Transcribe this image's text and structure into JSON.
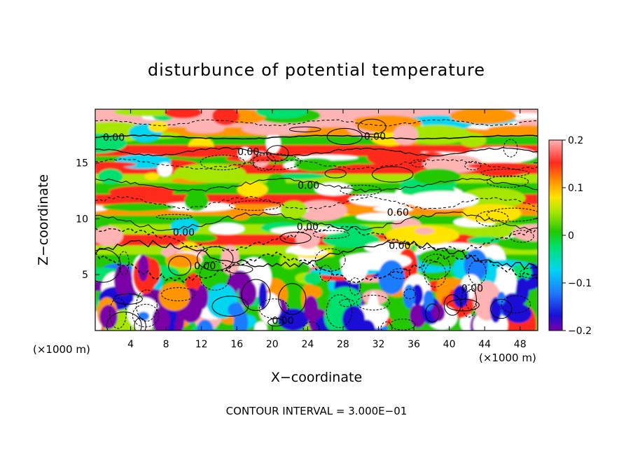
{
  "title": "disturbunce of potential temperature",
  "chart_data": {
    "type": "heatmap",
    "title": "disturbunce of potential temperature",
    "xlabel": "X−coordinate",
    "ylabel": "Z−coordinate",
    "x_unit_label": "(×1000 m)",
    "y_unit_label": "(×1000 m)",
    "xlim": [
      0,
      50
    ],
    "ylim": [
      0,
      19.8
    ],
    "x_ticks": [
      4,
      8,
      12,
      16,
      20,
      24,
      28,
      32,
      36,
      40,
      44,
      48
    ],
    "y_ticks": [
      5,
      10,
      15
    ],
    "colorbar": {
      "range": [
        -0.2,
        0.2
      ],
      "tick_labels": [
        "0.2",
        "0.1",
        "0",
        "−0.1",
        "−0.2"
      ],
      "tick_values": [
        0.2,
        0.1,
        0,
        -0.1,
        -0.2
      ]
    },
    "contour_labels": [
      {
        "text": "0.00",
        "x": 2.1,
        "y": 17.3
      },
      {
        "text": "0.00",
        "x": 17.3,
        "y": 16.0
      },
      {
        "text": "0.00",
        "x": 31.6,
        "y": 17.4
      },
      {
        "text": "0.00",
        "x": 24.1,
        "y": 13.0
      },
      {
        "text": "0.60",
        "x": 34.2,
        "y": 10.6
      },
      {
        "text": "0.00",
        "x": 24.0,
        "y": 9.3
      },
      {
        "text": "0.00",
        "x": 10.0,
        "y": 8.8
      },
      {
        "text": "0.00",
        "x": 34.4,
        "y": 7.6
      },
      {
        "text": "0.00",
        "x": 12.4,
        "y": 5.8
      },
      {
        "text": "0.00",
        "x": 42.6,
        "y": 3.8
      },
      {
        "text": "0.00",
        "x": 21.2,
        "y": 0.9
      }
    ],
    "grid": false
  },
  "footer": {
    "contour_interval": "CONTOUR INTERVAL = 3.000E−01"
  },
  "colors": {
    "colormap": [
      "#7a00a8",
      "#1a0fd6",
      "#1f7bff",
      "#00d6f0",
      "#00e06e",
      "#22c800",
      "#a6e600",
      "#ffe400",
      "#ff9600",
      "#ff2a1e",
      "#ffb3b3"
    ]
  }
}
